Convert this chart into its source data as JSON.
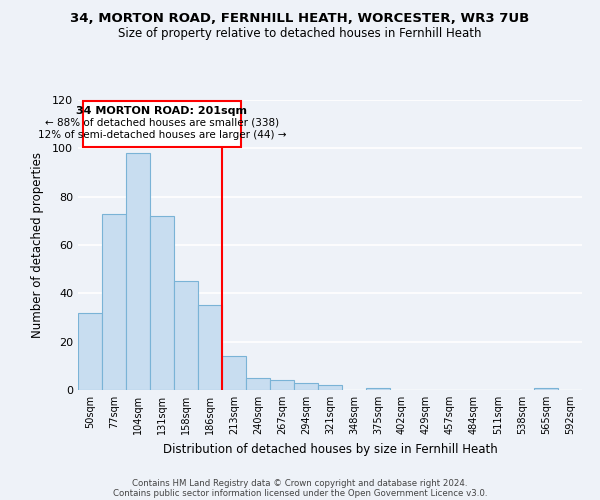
{
  "title1": "34, MORTON ROAD, FERNHILL HEATH, WORCESTER, WR3 7UB",
  "title2": "Size of property relative to detached houses in Fernhill Heath",
  "xlabel": "Distribution of detached houses by size in Fernhill Heath",
  "ylabel": "Number of detached properties",
  "bin_labels": [
    "50sqm",
    "77sqm",
    "104sqm",
    "131sqm",
    "158sqm",
    "186sqm",
    "213sqm",
    "240sqm",
    "267sqm",
    "294sqm",
    "321sqm",
    "348sqm",
    "375sqm",
    "402sqm",
    "429sqm",
    "457sqm",
    "484sqm",
    "511sqm",
    "538sqm",
    "565sqm",
    "592sqm"
  ],
  "bar_heights": [
    32,
    73,
    98,
    72,
    45,
    35,
    14,
    5,
    4,
    3,
    2,
    0,
    1,
    0,
    0,
    0,
    0,
    0,
    0,
    1,
    0
  ],
  "bar_color": "#c8ddf0",
  "bar_edge_color": "#7ab3d6",
  "annotation_title": "34 MORTON ROAD: 201sqm",
  "annotation_line1": "← 88% of detached houses are smaller (338)",
  "annotation_line2": "12% of semi-detached houses are larger (44) →",
  "red_line_x": 5.5,
  "ylim": [
    0,
    120
  ],
  "yticks": [
    0,
    20,
    40,
    60,
    80,
    100,
    120
  ],
  "footer1": "Contains HM Land Registry data © Crown copyright and database right 2024.",
  "footer2": "Contains public sector information licensed under the Open Government Licence v3.0.",
  "bg_color": "#eef2f8"
}
